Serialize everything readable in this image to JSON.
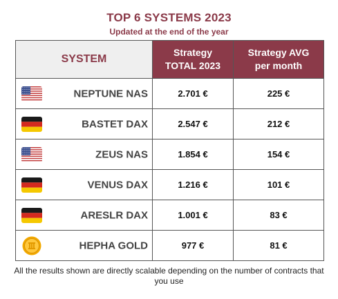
{
  "title": "TOP 6 SYSTEMS 2023",
  "subtitle": "Updated at the end of the year",
  "table": {
    "headers": {
      "system": "SYSTEM",
      "total_line1": "Strategy",
      "total_line2": "TOTAL 2023",
      "avg_line1": "Strategy AVG",
      "avg_line2": "per month"
    },
    "rows": [
      {
        "icon": "us-flag-icon",
        "name": "NEPTUNE NAS",
        "total": "2.701 €",
        "avg": "225 €"
      },
      {
        "icon": "germany-flag-icon",
        "name": "BASTET DAX",
        "total": "2.547 €",
        "avg": "212 €"
      },
      {
        "icon": "us-flag-icon",
        "name": "ZEUS NAS",
        "total": "1.854 €",
        "avg": "154 €"
      },
      {
        "icon": "germany-flag-icon",
        "name": "VENUS DAX",
        "total": "1.216 €",
        "avg": "101 €"
      },
      {
        "icon": "germany-flag-icon",
        "name": "ARESLR DAX",
        "total": "1.001 €",
        "avg": "83 €"
      },
      {
        "icon": "gold-coin-icon",
        "name": "HEPHA GOLD",
        "total": "977 €",
        "avg": "81 €"
      }
    ]
  },
  "footer": "All the results shown are directly scalable depending on the number of contracts that you use",
  "colors": {
    "accent": "#8b3a49",
    "header_bg": "#efefef"
  }
}
